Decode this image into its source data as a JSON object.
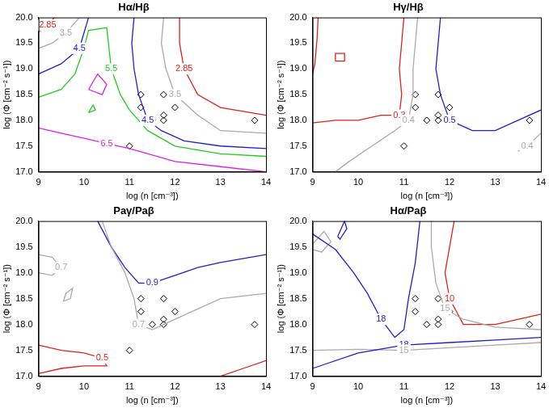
{
  "chart_data": [
    {
      "type": "line",
      "title": "Hα/Hβ",
      "x_label": "log (n [cm⁻³])",
      "y_label": "log (Φ [cm⁻² s⁻¹])",
      "xlim": [
        9,
        14
      ],
      "ylim": [
        17,
        20
      ],
      "xticks": [
        9,
        10,
        11,
        12,
        13,
        14
      ],
      "yticks": [
        {
          "value": 17,
          "label": "17.0"
        },
        {
          "value": 17.5,
          "label": "17.5"
        },
        {
          "value": 18,
          "label": "18.0"
        },
        {
          "value": 18.5,
          "label": "18.5"
        },
        {
          "value": 19,
          "label": "19.0"
        },
        {
          "value": 19.5,
          "label": "19.5"
        },
        {
          "value": 20,
          "label": "20.0"
        }
      ],
      "grid": false,
      "legend": false,
      "series": [
        {
          "type": "line",
          "label": "2.85",
          "color": "#e0201b",
          "x": [
            9.35,
            9.2,
            9.1,
            9.0
          ],
          "values": [
            20,
            19.85,
            19.78,
            19.72
          ]
        },
        {
          "type": "line",
          "label": "3.5",
          "color": "#aaaaaa",
          "x": [
            9.9,
            9.6,
            9.3,
            9.0
          ],
          "values": [
            20,
            19.7,
            19.5,
            19.4
          ]
        },
        {
          "type": "line",
          "label": "4.5",
          "color": "#1f1fd0",
          "x": [
            10.1,
            9.9,
            9.5,
            9.0
          ],
          "values": [
            20,
            19.4,
            19.1,
            18.9
          ]
        },
        {
          "type": "line",
          "label": "4.5",
          "color": "#1f1fd0",
          "x": [
            11.1,
            11.05,
            11.1,
            11.2,
            11.4,
            11.7,
            12.2,
            13,
            14
          ],
          "values": [
            20,
            19.5,
            19.0,
            18.5,
            18.0,
            17.8,
            17.6,
            17.5,
            17.45
          ]
        },
        {
          "type": "line",
          "label": "5.5",
          "color": "#22cc22",
          "x": [
            9.0,
            9.5,
            9.8,
            10.0,
            10.1,
            10.5,
            10.6,
            10.8,
            11.0,
            11.4,
            12,
            13,
            14
          ],
          "values": [
            18.45,
            18.6,
            18.9,
            19.4,
            19.75,
            19.8,
            19.0,
            18.5,
            18.2,
            17.8,
            17.5,
            17.35,
            17.3
          ]
        },
        {
          "type": "line",
          "color": "#22cc22",
          "x": [
            10.1,
            10.2,
            10.25,
            10.1
          ],
          "values": [
            18.15,
            18.3,
            18.2,
            18.15
          ]
        },
        {
          "type": "line",
          "label": "6.5",
          "color": "#e020e0",
          "x": [
            9.0,
            9.5,
            10,
            10.5,
            11,
            12,
            13,
            14
          ],
          "values": [
            17.85,
            17.75,
            17.65,
            17.55,
            17.45,
            17.2,
            17.1,
            17.0
          ]
        },
        {
          "type": "line",
          "color": "#e020e0",
          "x": [
            10.1,
            10.3,
            10.5,
            10.4,
            10.1
          ],
          "values": [
            18.6,
            18.9,
            18.7,
            18.5,
            18.6
          ]
        },
        {
          "type": "line",
          "label": "3.5",
          "color": "#aaaaaa",
          "x": [
            11.75,
            11.7,
            11.8,
            12.0,
            12.5,
            13,
            14
          ],
          "values": [
            20,
            19.5,
            19.0,
            18.5,
            18.1,
            17.8,
            17.75
          ]
        },
        {
          "type": "line",
          "label": "2.85",
          "color": "#e0201b",
          "x": [
            12.1,
            12.1,
            12.2,
            12.5,
            13,
            14
          ],
          "values": [
            20,
            19.5,
            19.0,
            18.5,
            18.25,
            18.1
          ]
        },
        {
          "type": "scatter",
          "marker": "diamond",
          "color": "#000000",
          "x": [
            11.0,
            11.25,
            11.25,
            11.5,
            11.75,
            11.75,
            11.75,
            12.0,
            13.75
          ],
          "values": [
            17.5,
            18.5,
            18.25,
            18.0,
            18.5,
            18.1,
            18.0,
            18.25,
            18.0
          ]
        }
      ]
    },
    {
      "type": "line",
      "title": "Hγ/Hβ",
      "x_label": "log (n [cm⁻³])",
      "y_label": "log (Φ [cm⁻² s⁻¹])",
      "xlim": [
        9,
        14
      ],
      "ylim": [
        17,
        20
      ],
      "xticks": [
        9,
        10,
        11,
        12,
        13,
        14
      ],
      "yticks": [
        {
          "value": 17,
          "label": "17.0"
        },
        {
          "value": 17.5,
          "label": "17.5"
        },
        {
          "value": 18,
          "label": "18.0"
        },
        {
          "value": 18.5,
          "label": "18.5"
        },
        {
          "value": 19,
          "label": "19.0"
        },
        {
          "value": 19.5,
          "label": "19.5"
        },
        {
          "value": 20,
          "label": "20.0"
        }
      ],
      "grid": false,
      "legend": false,
      "series": [
        {
          "type": "line",
          "label": "0.3",
          "color": "#e0201b",
          "x": [
            11.0,
            10.95,
            10.9,
            10.95,
            10.9,
            10.5,
            10,
            9.5,
            9.0
          ],
          "values": [
            20,
            19.5,
            19.0,
            18.5,
            18.1,
            18.1,
            18.0,
            18.0,
            17.95
          ]
        },
        {
          "type": "line",
          "color": "#e0201b",
          "x": [
            9.12,
            9.1,
            9.05,
            9.0
          ],
          "values": [
            20,
            19.6,
            19.1,
            18.9
          ]
        },
        {
          "type": "line",
          "color": "#e0201b",
          "x": [
            9.5,
            9.7,
            9.7,
            9.5,
            9.5
          ],
          "values": [
            19.15,
            19.15,
            19.3,
            19.3,
            19.15
          ]
        },
        {
          "type": "line",
          "label": "0.4",
          "color": "#aaaaaa",
          "x": [
            11.3,
            11.25,
            11.2,
            11.2,
            11.1,
            10.8,
            10.3,
            9.8,
            9.5
          ],
          "values": [
            20,
            19.5,
            19.0,
            18.5,
            18.0,
            17.8,
            17.5,
            17.2,
            17.0
          ]
        },
        {
          "type": "line",
          "label": "0.4",
          "color": "#aaaaaa",
          "x": [
            14,
            13.7,
            13.5
          ],
          "values": [
            17.75,
            17.5,
            17.4
          ]
        },
        {
          "type": "line",
          "label": "0.5",
          "color": "#1f1fd0",
          "x": [
            11.8,
            11.75,
            11.7,
            11.8,
            12,
            12.5,
            13,
            13.5,
            14
          ],
          "values": [
            20,
            19.5,
            19.0,
            18.5,
            18.0,
            17.8,
            17.8,
            18.0,
            18.2
          ]
        },
        {
          "type": "scatter",
          "marker": "diamond",
          "color": "#000000",
          "x": [
            11.0,
            11.25,
            11.25,
            11.5,
            11.75,
            11.75,
            11.75,
            12.0,
            13.75
          ],
          "values": [
            17.5,
            18.5,
            18.25,
            18.0,
            18.5,
            18.1,
            18.0,
            18.25,
            18.0
          ]
        }
      ]
    },
    {
      "type": "line",
      "title": "Paγ/Paβ",
      "x_label": "log (n [cm⁻³])",
      "y_label": "log (Φ [cm⁻² s⁻¹])",
      "xlim": [
        9,
        14
      ],
      "ylim": [
        17,
        20
      ],
      "xticks": [
        9,
        10,
        11,
        12,
        13,
        14
      ],
      "yticks": [
        {
          "value": 17,
          "label": "17.0"
        },
        {
          "value": 17.5,
          "label": "17.5"
        },
        {
          "value": 18,
          "label": "18.0"
        },
        {
          "value": 18.5,
          "label": "18.5"
        },
        {
          "value": 19,
          "label": "19.0"
        },
        {
          "value": 19.5,
          "label": "19.5"
        },
        {
          "value": 20,
          "label": "20.0"
        }
      ],
      "grid": false,
      "legend": false,
      "series": [
        {
          "type": "line",
          "label": "0.7",
          "color": "#aaaaaa",
          "x": [
            9.0,
            9.3,
            9.5,
            9.3,
            9.0
          ],
          "values": [
            19.35,
            19.3,
            19.1,
            18.95,
            19.0
          ]
        },
        {
          "type": "line",
          "color": "#aaaaaa",
          "x": [
            9.6,
            9.75,
            9.7,
            9.55,
            9.6
          ],
          "values": [
            18.6,
            18.7,
            18.5,
            18.45,
            18.6
          ]
        },
        {
          "type": "line",
          "label": "0.7",
          "color": "#aaaaaa",
          "x": [
            10.4,
            10.6,
            10.9,
            11.1,
            11.2,
            11.5,
            12,
            13,
            14
          ],
          "values": [
            20,
            19.5,
            19.0,
            18.5,
            18.0,
            17.9,
            18.1,
            18.5,
            18.6
          ]
        },
        {
          "type": "line",
          "label": "0.9",
          "color": "#1f1fd0",
          "x": [
            10.3,
            10.6,
            10.9,
            11.2,
            11.5,
            12,
            12.5,
            13,
            14
          ],
          "values": [
            20,
            19.5,
            19.1,
            18.8,
            18.8,
            18.95,
            19.1,
            19.2,
            19.35
          ]
        },
        {
          "type": "line",
          "label": "0.5",
          "color": "#e0201b",
          "x": [
            9.0,
            9.5,
            10,
            10.4,
            10.5,
            10,
            9.5,
            9.0
          ],
          "values": [
            17.6,
            17.5,
            17.45,
            17.35,
            17.2,
            17.2,
            17.15,
            17.05
          ]
        },
        {
          "type": "line",
          "color": "#e0201b",
          "x": [
            13.0,
            13.5,
            14
          ],
          "values": [
            17.0,
            17.15,
            17.3
          ]
        },
        {
          "type": "scatter",
          "marker": "diamond",
          "color": "#000000",
          "x": [
            11.0,
            11.25,
            11.25,
            11.5,
            11.75,
            11.75,
            11.75,
            12.0,
            13.75
          ],
          "values": [
            17.5,
            18.5,
            18.25,
            18.0,
            18.5,
            18.1,
            18.0,
            18.25,
            18.0
          ]
        }
      ]
    },
    {
      "type": "line",
      "title": "Hα/Paβ",
      "x_label": "log (n [cm⁻³])",
      "y_label": "log (Φ [cm⁻² s⁻¹])",
      "xlim": [
        9,
        14
      ],
      "ylim": [
        17,
        20
      ],
      "xticks": [
        9,
        10,
        11,
        12,
        13,
        14
      ],
      "yticks": [
        {
          "value": 17,
          "label": "17.0"
        },
        {
          "value": 17.5,
          "label": "17.5"
        },
        {
          "value": 18,
          "label": "18.0"
        },
        {
          "value": 18.5,
          "label": "18.5"
        },
        {
          "value": 19,
          "label": "19.0"
        },
        {
          "value": 19.5,
          "label": "19.5"
        },
        {
          "value": 20,
          "label": "20.0"
        }
      ],
      "grid": false,
      "legend": false,
      "series": [
        {
          "type": "line",
          "label": "18",
          "color": "#1f1fd0",
          "x": [
            9.0,
            9.5,
            9.9,
            10.2,
            10.5,
            10.8,
            11.0,
            11.1,
            11.25,
            11.35
          ],
          "values": [
            19.75,
            19.45,
            19.0,
            18.6,
            18.1,
            17.75,
            17.9,
            18.5,
            19.2,
            20
          ]
        },
        {
          "type": "line",
          "color": "#1f1fd0",
          "x": [
            9.55,
            9.7,
            9.75,
            9.6,
            9.55
          ],
          "values": [
            19.7,
            20,
            19.85,
            19.65,
            19.7
          ]
        },
        {
          "type": "line",
          "label": "18",
          "color": "#1f1fd0",
          "x": [
            9.0,
            10,
            11,
            12,
            13,
            14
          ],
          "values": [
            17.15,
            17.45,
            17.6,
            17.65,
            17.7,
            17.75
          ]
        },
        {
          "type": "line",
          "color": "#aaaaaa",
          "x": [
            9.0,
            9.25,
            9.4,
            9.2,
            9.0
          ],
          "values": [
            19.55,
            19.8,
            19.6,
            19.4,
            19.45
          ]
        },
        {
          "type": "line",
          "label": "15",
          "color": "#aaaaaa",
          "x": [
            11.6,
            11.6,
            11.7,
            11.9,
            12.3,
            13,
            14
          ],
          "values": [
            20,
            19.5,
            18.8,
            18.3,
            18.1,
            17.95,
            17.9
          ]
        },
        {
          "type": "line",
          "label": "15",
          "color": "#aaaaaa",
          "x": [
            9.0,
            10,
            11,
            12,
            13,
            14
          ],
          "values": [
            17.5,
            17.52,
            17.5,
            17.55,
            17.6,
            17.65
          ]
        },
        {
          "type": "line",
          "label": "10",
          "color": "#e0201b",
          "x": [
            12.1,
            12.0,
            11.9,
            12.0,
            12.3,
            13,
            14
          ],
          "values": [
            20,
            19.5,
            19.0,
            18.5,
            18.0,
            18.0,
            18.2
          ]
        },
        {
          "type": "scatter",
          "marker": "diamond",
          "color": "#000000",
          "x": [
            11.0,
            11.25,
            11.25,
            11.5,
            11.75,
            11.75,
            11.75,
            12.0,
            13.75
          ],
          "values": [
            17.5,
            18.5,
            18.25,
            18.0,
            18.5,
            18.1,
            18.0,
            18.25,
            18.0
          ]
        }
      ]
    }
  ]
}
